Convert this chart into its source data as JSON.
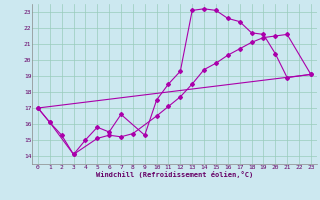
{
  "xlabel": "Windchill (Refroidissement éolien,°C)",
  "xlim": [
    -0.5,
    23.5
  ],
  "ylim": [
    13.5,
    23.5
  ],
  "yticks": [
    14,
    15,
    16,
    17,
    18,
    19,
    20,
    21,
    22,
    23
  ],
  "xticks": [
    0,
    1,
    2,
    3,
    4,
    5,
    6,
    7,
    8,
    9,
    10,
    11,
    12,
    13,
    14,
    15,
    16,
    17,
    18,
    19,
    20,
    21,
    22,
    23
  ],
  "bg_color": "#cce8f0",
  "line_color": "#aa00aa",
  "grid_color": "#99ccbb",
  "line1_x": [
    0,
    1,
    3,
    4,
    5,
    6,
    7,
    9,
    10,
    11,
    12,
    13,
    14,
    15,
    16,
    17,
    18,
    19,
    20,
    21,
    23
  ],
  "line1_y": [
    17.0,
    16.1,
    14.1,
    15.0,
    15.8,
    15.5,
    16.6,
    15.3,
    17.5,
    18.5,
    19.3,
    23.1,
    23.2,
    23.1,
    22.6,
    22.4,
    21.7,
    21.6,
    20.4,
    18.9,
    19.1
  ],
  "line2_x": [
    0,
    1,
    2,
    3,
    5,
    6,
    7,
    8,
    10,
    11,
    12,
    13,
    14,
    15,
    16,
    17,
    18,
    19,
    20,
    21,
    23
  ],
  "line2_y": [
    17.0,
    16.1,
    15.3,
    14.1,
    15.1,
    15.3,
    15.2,
    15.4,
    16.5,
    17.1,
    17.7,
    18.5,
    19.4,
    19.8,
    20.3,
    20.7,
    21.1,
    21.4,
    21.5,
    21.6,
    19.1
  ],
  "line3_x": [
    0,
    23
  ],
  "line3_y": [
    17.0,
    19.1
  ]
}
